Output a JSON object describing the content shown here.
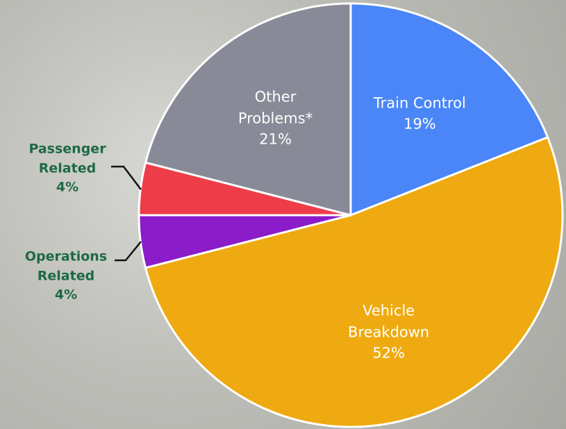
{
  "chart_data": {
    "type": "pie",
    "categories": [
      "Train Control",
      "Vehicle Breakdown",
      "Operations Related",
      "Passenger Related",
      "Other Problems*"
    ],
    "values": [
      19,
      52,
      4,
      4,
      21
    ],
    "value_labels": [
      "19%",
      "52%",
      "4%",
      "4%",
      "21%"
    ],
    "colors": [
      "#4a86f7",
      "#eeaa10",
      "#8a1cc9",
      "#ee3d48",
      "#888a97"
    ]
  }
}
